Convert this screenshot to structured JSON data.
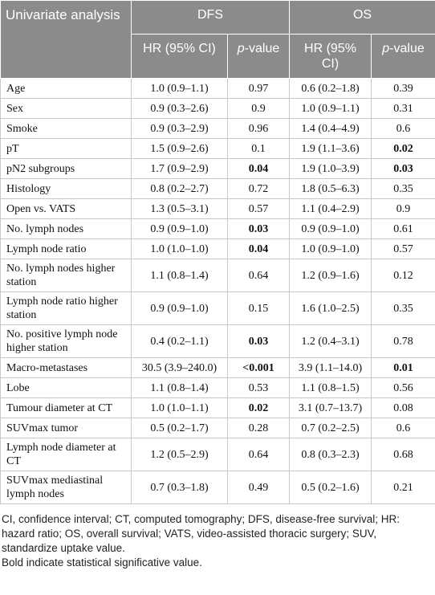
{
  "table": {
    "header": {
      "corner": "Univariate analysis",
      "groups": [
        "DFS",
        "OS"
      ],
      "sub": [
        "HR (95% CI)",
        "p-value",
        "HR (95% CI)",
        "p-value"
      ]
    },
    "rows": [
      [
        "Age",
        "1.0 (0.9–1.1)",
        "0.97",
        "0.6 (0.2–1.8)",
        "0.39"
      ],
      [
        "Sex",
        "0.9 (0.3–2.6)",
        "0.9",
        "1.0 (0.9–1.1)",
        "0.31"
      ],
      [
        "Smoke",
        "0.9 (0.3–2.9)",
        "0.96",
        "1.4 (0.4–4.9)",
        "0.6"
      ],
      [
        "pT",
        "1.5 (0.9–2.6)",
        "0.1",
        "1.9 (1.1–3.6)",
        {
          "text": "0.02",
          "bold": true
        }
      ],
      [
        "pN2 subgroups",
        "1.7 (0.9–2.9)",
        {
          "text": "0.04",
          "bold": true
        },
        "1.9 (1.0–3.9)",
        {
          "text": "0.03",
          "bold": true
        }
      ],
      [
        "Histology",
        "0.8 (0.2–2.7)",
        "0.72",
        "1.8 (0.5–6.3)",
        "0.35"
      ],
      [
        "Open vs. VATS",
        "1.3 (0.5–3.1)",
        "0.57",
        "1.1 (0.4–2.9)",
        "0.9"
      ],
      [
        "No. lymph nodes",
        "0.9 (0.9–1.0)",
        {
          "text": "0.03",
          "bold": true
        },
        "0.9 (0.9–1.0)",
        "0.61"
      ],
      [
        "Lymph node ratio",
        "1.0 (1.0–1.0)",
        {
          "text": "0.04",
          "bold": true
        },
        "1.0 (0.9–1.0)",
        "0.57"
      ],
      [
        "No. lymph nodes higher station",
        "1.1 (0.8–1.4)",
        "0.64",
        "1.2 (0.9–1.6)",
        "0.12"
      ],
      [
        "Lymph node ratio higher station",
        "0.9 (0.9–1.0)",
        "0.15",
        "1.6 (1.0–2.5)",
        "0.35"
      ],
      [
        "No. positive lymph node higher station",
        "0.4 (0.2–1.1)",
        {
          "text": "0.03",
          "bold": true
        },
        "1.2 (0.4–3.1)",
        "0.78"
      ],
      [
        "Macro-metastases",
        "30.5 (3.9–240.0)",
        {
          "text": "<0.001",
          "bold": true
        },
        "3.9 (1.1–14.0)",
        {
          "text": "0.01",
          "bold": true
        }
      ],
      [
        "Lobe",
        "1.1 (0.8–1.4)",
        "0.53",
        "1.1 (0.8–1.5)",
        "0.56"
      ],
      [
        "Tumour diameter at CT",
        "1.0 (1.0–1.1)",
        {
          "text": "0.02",
          "bold": true
        },
        "3.1 (0.7–13.7)",
        "0.08"
      ],
      [
        "SUVmax tumor",
        "0.5 (0.2–1.7)",
        "0.28",
        "0.7 (0.2–2.5)",
        "0.6"
      ],
      [
        "Lymph node diameter at CT",
        "1.2 (0.5–2.9)",
        "0.64",
        "0.8 (0.3–2.3)",
        "0.68"
      ],
      [
        "SUVmax mediastinal lymph nodes",
        "0.7 (0.3–1.8)",
        "0.49",
        "0.5 (0.2–1.6)",
        "0.21"
      ]
    ]
  },
  "footnotes": [
    "CI, confidence interval; CT, computed tomography; DFS, disease-free survival; HR: hazard ratio; OS, overall survival; VATS, video-assisted thoracic surgery; SUV, standardize uptake value.",
    "Bold indicate statistical significative value."
  ]
}
